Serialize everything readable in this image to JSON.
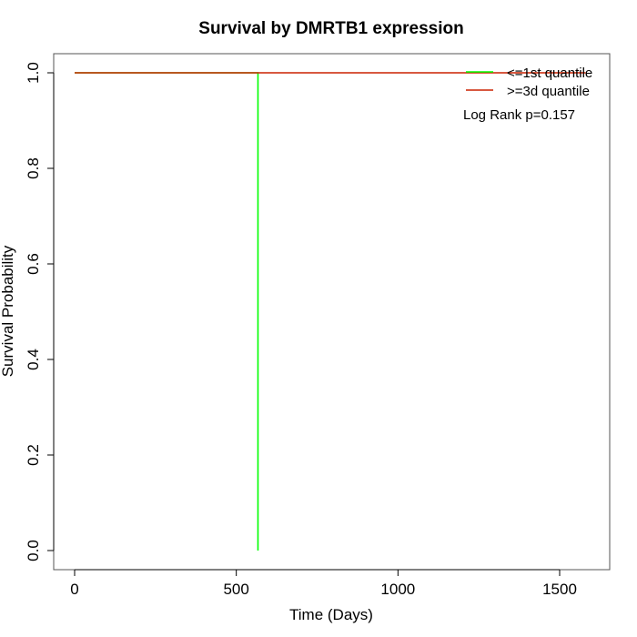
{
  "chart_data": {
    "type": "line",
    "title": "Survival by DMRTB1 expression",
    "xlabel": "Time (Days)",
    "ylabel": "Survival Probability",
    "xlim": [
      0,
      1650
    ],
    "ylim": [
      0,
      1.0
    ],
    "xticks": [
      0,
      500,
      1000,
      1500
    ],
    "yticks": [
      0.0,
      0.2,
      0.4,
      0.6,
      0.8,
      1.0
    ],
    "xtick_labels": [
      "0",
      "500",
      "1000",
      "1500"
    ],
    "ytick_labels": [
      "0.0",
      "0.2",
      "0.4",
      "0.6",
      "0.8",
      "1.0"
    ],
    "grid": false,
    "legend_position": "top-right",
    "series": [
      {
        "name": "<=1st quantile",
        "color": "#00ff00",
        "step": true,
        "x": [
          0,
          567,
          567
        ],
        "y": [
          1.0,
          1.0,
          0.0
        ]
      },
      {
        "name": ">=3d quantile",
        "color": "#cc2200",
        "step": true,
        "x": [
          0,
          1580
        ],
        "y": [
          1.0,
          1.0
        ]
      }
    ],
    "annotation": "Log Rank p=0.157"
  }
}
